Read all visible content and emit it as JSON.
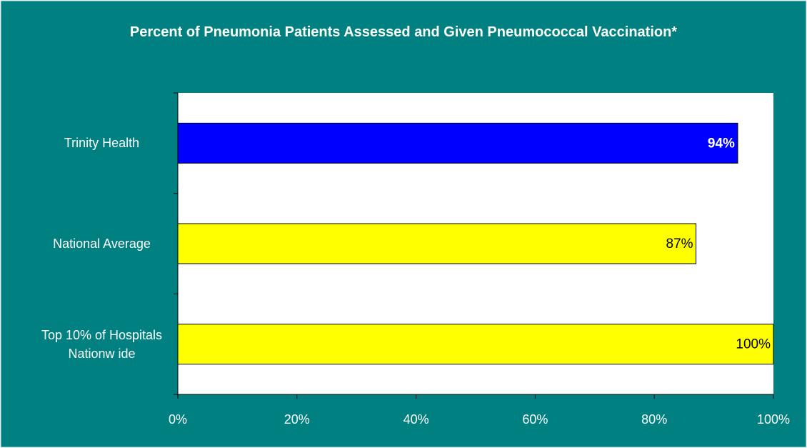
{
  "chart_data": {
    "type": "bar",
    "orientation": "horizontal",
    "title": "Percent of Pneumonia Patients Assessed and Given Pneumococcal Vaccination*",
    "categories": [
      "Trinity Health",
      "National Average",
      "Top 10% of Hospitals Nationw ide"
    ],
    "values": [
      94,
      87,
      100
    ],
    "value_labels": [
      "94%",
      "87%",
      "100%"
    ],
    "colors": [
      "#0000ff",
      "#ffff00",
      "#ffff00"
    ],
    "value_label_colors": [
      "#ffffff",
      "#000000",
      "#000000"
    ],
    "xlim": [
      0,
      100
    ],
    "xticks": [
      {
        "value": 0,
        "label": "0%"
      },
      {
        "value": 20,
        "label": "20%"
      },
      {
        "value": 40,
        "label": "40%"
      },
      {
        "value": 60,
        "label": "60%"
      },
      {
        "value": 80,
        "label": "80%"
      },
      {
        "value": 100,
        "label": "100%"
      }
    ],
    "background": "#008080",
    "plot_background": "#ffffff"
  }
}
